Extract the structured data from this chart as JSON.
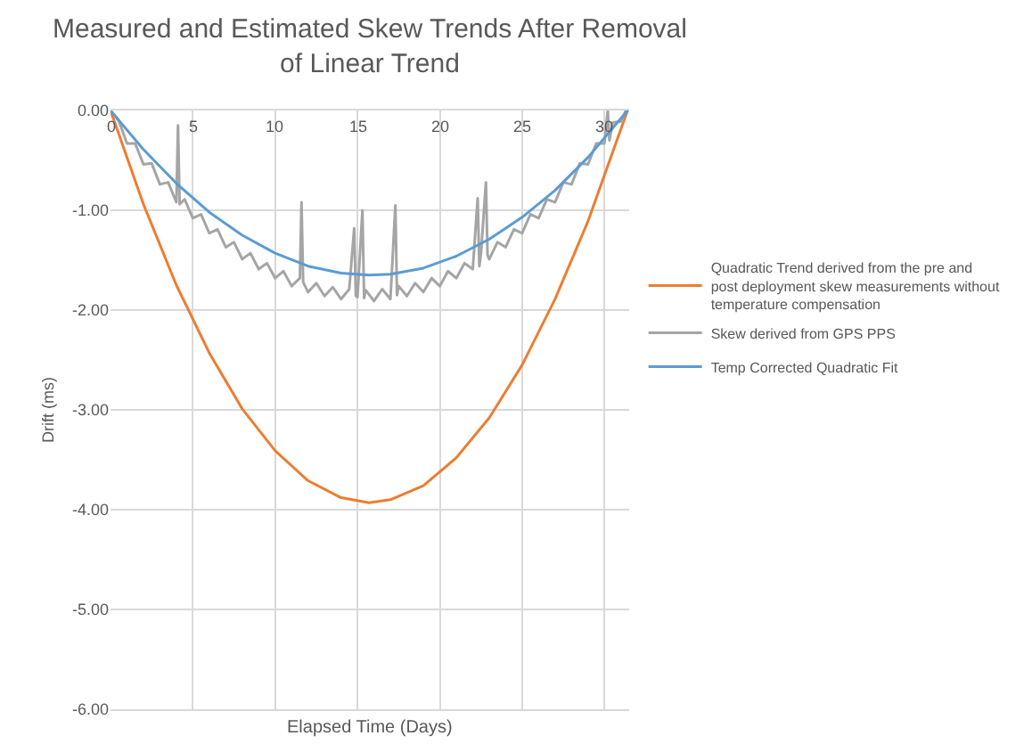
{
  "chart_data": {
    "type": "line",
    "title": "Measured and Estimated Skew Trends After Removal of Linear Trend",
    "xlabel": "Elapsed Time (Days)",
    "ylabel": "Drift (ms)",
    "xlim": [
      0,
      31.5
    ],
    "xticks": [
      0,
      5,
      10,
      15,
      20,
      25,
      30
    ],
    "ylim": [
      -6,
      0
    ],
    "yticks": [
      {
        "value": 0,
        "label": "0.00"
      },
      {
        "value": -1,
        "label": "-1.00"
      },
      {
        "value": -2,
        "label": "-2.00"
      },
      {
        "value": -3,
        "label": "-3.00"
      },
      {
        "value": -4,
        "label": "-4.00"
      },
      {
        "value": -5,
        "label": "-5.00"
      },
      {
        "value": -6,
        "label": "-6.00"
      }
    ],
    "grid": true,
    "legend": "right",
    "marker": "none",
    "line_style": "solid",
    "series": [
      {
        "name": "Quadratic Trend derived from the pre and post deployment skew measurements without temperature compensation",
        "color": "#ed7d31",
        "x": [
          0,
          2,
          4,
          6,
          8,
          10,
          12,
          14,
          15.7,
          17,
          19,
          21,
          23,
          25,
          27,
          29,
          31.4
        ],
        "values": [
          0,
          -0.94,
          -1.75,
          -2.43,
          -2.99,
          -3.41,
          -3.71,
          -3.88,
          -3.93,
          -3.9,
          -3.76,
          -3.48,
          -3.08,
          -2.55,
          -1.89,
          -1.11,
          0
        ]
      },
      {
        "name": "Skew derived from GPS PPS",
        "color": "#a5a5a5",
        "x": [
          0,
          0.5,
          1,
          1.5,
          2,
          2.5,
          3,
          3.5,
          4,
          4.1,
          4.2,
          4.5,
          5,
          5.5,
          6,
          6.5,
          7,
          7.5,
          8,
          8.5,
          9,
          9.5,
          10,
          10.5,
          11,
          11.5,
          11.6,
          11.7,
          12,
          12.5,
          13,
          13.5,
          14,
          14.5,
          14.8,
          14.9,
          15,
          15.3,
          15.4,
          15.5,
          16,
          16.5,
          17,
          17.3,
          17.4,
          17.5,
          18,
          18.5,
          19,
          19.5,
          20,
          20.5,
          21,
          21.5,
          22,
          22.3,
          22.4,
          22.5,
          22.8,
          22.9,
          23,
          23.5,
          24,
          24.5,
          25,
          25.5,
          26,
          26.5,
          27,
          27.5,
          28,
          28.5,
          29,
          29.5,
          30,
          30.2,
          30.3,
          30.5,
          31,
          31.3
        ],
        "values": [
          0,
          -0.1,
          -0.33,
          -0.33,
          -0.54,
          -0.53,
          -0.74,
          -0.72,
          -0.92,
          -0.15,
          -0.94,
          -0.89,
          -1.08,
          -1.04,
          -1.23,
          -1.19,
          -1.37,
          -1.32,
          -1.49,
          -1.43,
          -1.59,
          -1.53,
          -1.68,
          -1.61,
          -1.76,
          -1.68,
          -0.92,
          -1.72,
          -1.82,
          -1.73,
          -1.86,
          -1.77,
          -1.89,
          -1.79,
          -1.18,
          -1.86,
          -1.87,
          -1,
          -1.88,
          -1.8,
          -1.91,
          -1.79,
          -1.89,
          -0.95,
          -1.85,
          -1.76,
          -1.86,
          -1.73,
          -1.82,
          -1.68,
          -1.76,
          -1.61,
          -1.68,
          -1.53,
          -1.59,
          -0.88,
          -1.56,
          -1.43,
          -0.72,
          -1.45,
          -1.49,
          -1.32,
          -1.37,
          -1.19,
          -1.23,
          -1.04,
          -1.08,
          -0.89,
          -0.92,
          -0.72,
          -0.74,
          -0.53,
          -0.54,
          -0.33,
          -0.33,
          0,
          -0.3,
          -0.12,
          -0.11,
          0
        ]
      },
      {
        "name": "Temp Corrected Quadratic Fit",
        "color": "#5b9bd5",
        "x": [
          0,
          2,
          4,
          6,
          8,
          10,
          12,
          14,
          15.7,
          17,
          19,
          21,
          23,
          25,
          27,
          29,
          31.4
        ],
        "values": [
          0,
          -0.39,
          -0.73,
          -1.02,
          -1.25,
          -1.43,
          -1.56,
          -1.63,
          -1.65,
          -1.64,
          -1.58,
          -1.46,
          -1.29,
          -1.07,
          -0.8,
          -0.47,
          0
        ]
      }
    ]
  }
}
